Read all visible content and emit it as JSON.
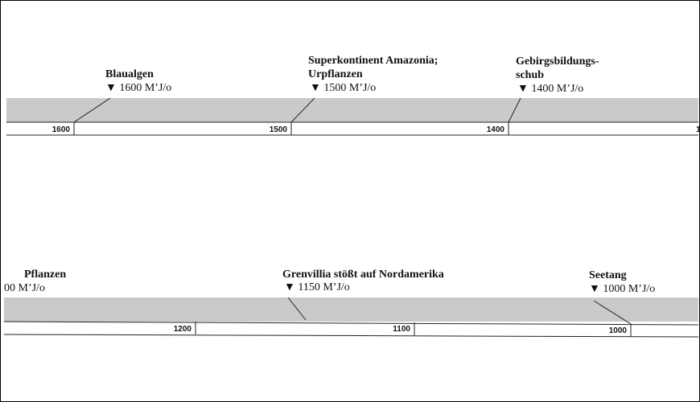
{
  "rows": [
    {
      "events": [
        {
          "title": [
            "Blaualgen"
          ],
          "date": "▼ 1600 M’J/o"
        },
        {
          "title": [
            "Superkontinent Amazonia;",
            "Urpflanzen"
          ],
          "date": "▼ 1500 M’J/o"
        },
        {
          "title": [
            "Gebirgsbildungs-",
            "schub"
          ],
          "date": "▼ 1400 M’J/o"
        }
      ],
      "scale": [
        "1600",
        "1500",
        "1400",
        "1"
      ]
    },
    {
      "events": [
        {
          "title": [
            "Pflanzen"
          ],
          "date": "00 M’J/o"
        },
        {
          "title": [
            "Grenvillia stößt auf Nordamerika"
          ],
          "date": "▼ 1150 M’J/o"
        },
        {
          "title": [
            "Seetang"
          ],
          "date": "▼ 1000 M’J/o"
        }
      ],
      "scale": [
        "1200",
        "1100",
        "1000"
      ]
    }
  ]
}
